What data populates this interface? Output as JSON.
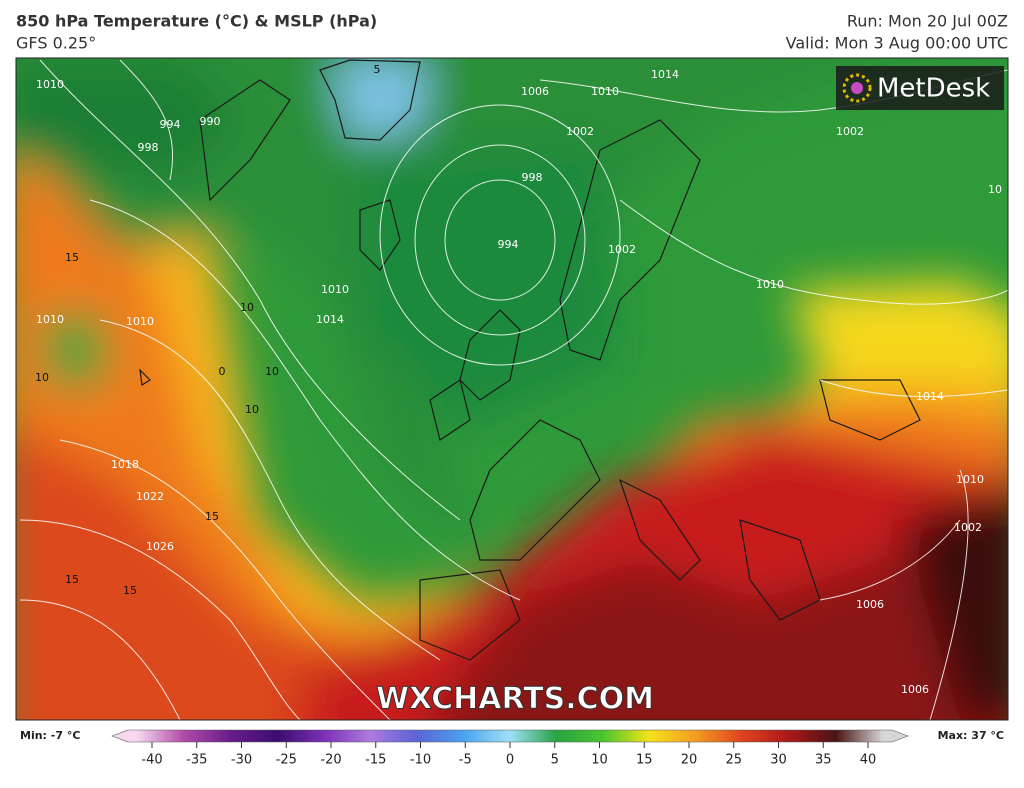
{
  "header": {
    "title": "850 hPa Temperature (°C) & MSLP (hPa)",
    "model": "GFS 0.25°",
    "run": "Run: Mon 20 Jul 00Z",
    "valid": "Valid: Mon 3 Aug 00:00 UTC"
  },
  "logo": "MetDesk",
  "watermark": "WXCHARTS.COM",
  "map": {
    "isobar_labels": [
      "1010",
      "994",
      "990",
      "1010",
      "1006",
      "1010",
      "1014",
      "1002",
      "998",
      "994",
      "1002",
      "1010",
      "1002",
      "1010",
      "1014",
      "1010",
      "1018",
      "1022",
      "1026",
      "1014",
      "1010",
      "1002",
      "1006",
      "1006",
      "998",
      "10"
    ],
    "temperature_labels": [
      "15",
      "10",
      "10",
      "10",
      "10",
      "0",
      "15",
      "15",
      "15",
      "5"
    ]
  },
  "colorbar": {
    "min_label": "Min: -7 °C",
    "max_label": "Max: 37 °C",
    "ticks": [
      -40,
      -35,
      -30,
      -25,
      -20,
      -15,
      -10,
      -5,
      0,
      5,
      10,
      15,
      20,
      25,
      30,
      35,
      40
    ],
    "colors": [
      "#f7d8f0",
      "#b04aa8",
      "#6a1d8a",
      "#3b0d6e",
      "#7a2fb6",
      "#b07ae0",
      "#5a64d8",
      "#4aa2f0",
      "#9fe0f8",
      "#27a344",
      "#4dc62d",
      "#f7e21b",
      "#f59a23",
      "#e0401f",
      "#a81818",
      "#4a1414",
      "#d6d6d6"
    ]
  }
}
